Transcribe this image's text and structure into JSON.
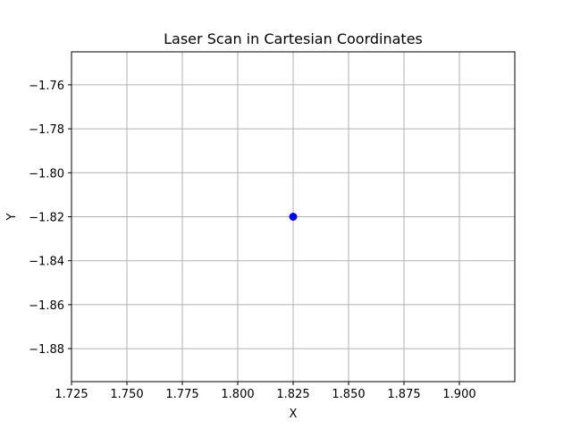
{
  "chart_data": {
    "type": "scatter",
    "title": "Laser Scan in Cartesian Coordinates",
    "xlabel": "X",
    "ylabel": "Y",
    "xlim": [
      1.725,
      1.925
    ],
    "ylim": [
      -1.895,
      -1.745
    ],
    "x_ticks": [
      1.725,
      1.75,
      1.775,
      1.8,
      1.825,
      1.85,
      1.875,
      1.9
    ],
    "x_tick_labels": [
      "1.725",
      "1.750",
      "1.775",
      "1.800",
      "1.825",
      "1.850",
      "1.875",
      "1.900"
    ],
    "y_ticks": [
      -1.76,
      -1.78,
      -1.8,
      -1.82,
      -1.84,
      -1.86,
      -1.88
    ],
    "y_tick_labels": [
      "−1.76",
      "−1.78",
      "−1.80",
      "−1.82",
      "−1.84",
      "−1.86",
      "−1.88"
    ],
    "grid": true,
    "series": [
      {
        "points": [
          {
            "x": 1.825,
            "y": -1.82
          }
        ],
        "color": "#0000ff"
      }
    ]
  }
}
